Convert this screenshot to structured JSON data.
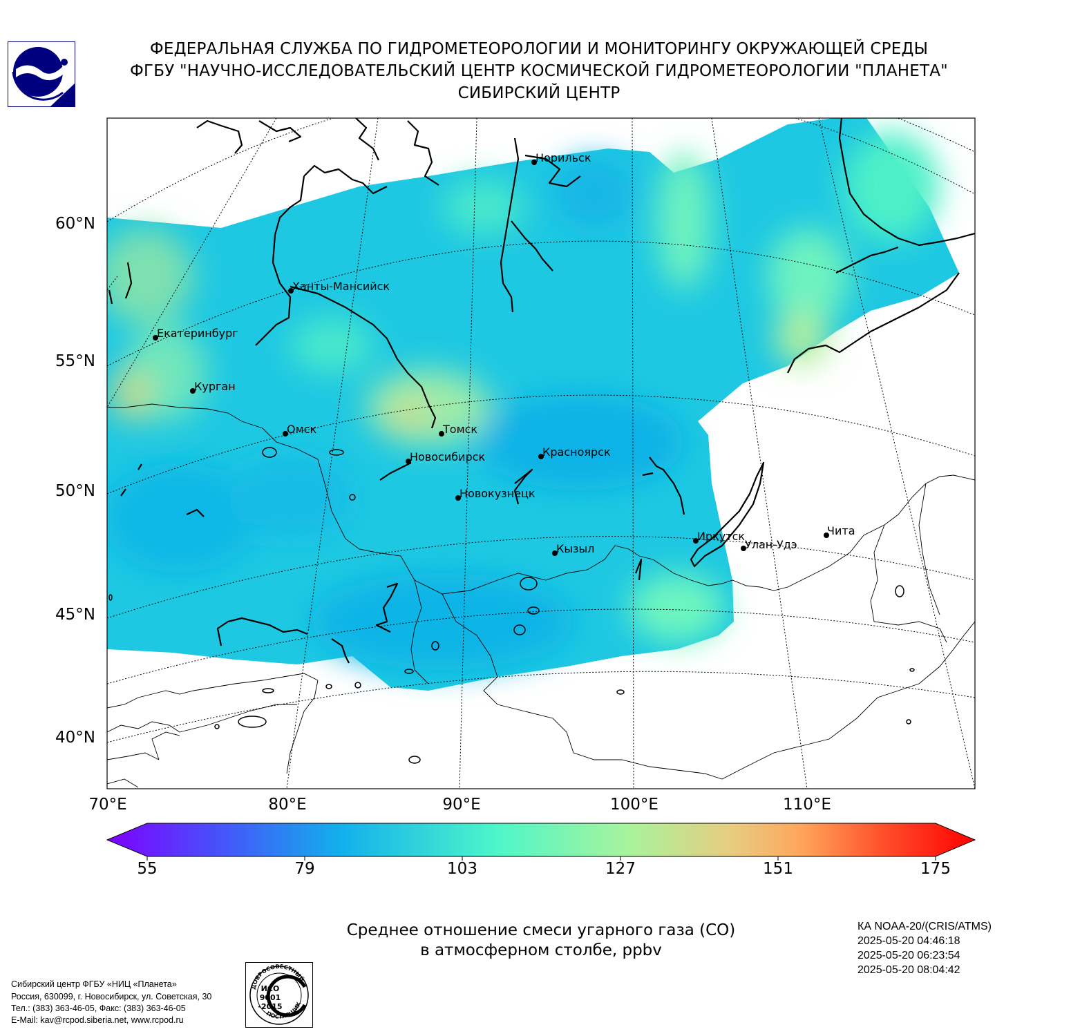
{
  "header": {
    "line1": "ФЕДЕРАЛЬНАЯ СЛУЖБА ПО ГИДРОМЕТЕОРОЛОГИИ И МОНИТОРИНГУ ОКРУЖАЮЩЕЙ СРЕДЫ",
    "line2": "ФГБУ \"НАУЧНО-ИССЛЕДОВАТЕЛЬСКИЙ ЦЕНТР КОСМИЧЕСКОЙ ГИДРОМЕТЕОРОЛОГИИ \"ПЛАНЕТА\"",
    "line3": "СИБИРСКИЙ ЦЕНТР"
  },
  "map": {
    "lat_labels": [
      "60°N",
      "55°N",
      "50°N",
      "45°N",
      "40°N"
    ],
    "lon_labels": [
      "70°E",
      "80°E",
      "90°E",
      "100°E",
      "110°E"
    ],
    "cities": [
      {
        "name": "Норильск"
      },
      {
        "name": "Ханты-Мансийск"
      },
      {
        "name": "Екатеринбург"
      },
      {
        "name": "Курган"
      },
      {
        "name": "Омск"
      },
      {
        "name": "Томск"
      },
      {
        "name": "Новосибирск"
      },
      {
        "name": "Красноярск"
      },
      {
        "name": "Новокузнецк"
      },
      {
        "name": "Иркутск"
      },
      {
        "name": "Улан-Удэ"
      },
      {
        "name": "Чита"
      },
      {
        "name": "Кызыл"
      }
    ]
  },
  "colorbar": {
    "ticks": [
      "55",
      "79",
      "103",
      "127",
      "151",
      "175"
    ],
    "colors": {
      "low": "#7f00ff",
      "mid_low": "#00b4eb",
      "mid": "#4ef6c9",
      "mid_high": "#f0c070",
      "high": "#ff0000"
    }
  },
  "caption": {
    "line1": "Среднее отношение смеси угарного газа (CO)",
    "line2": "в атмосферном столбе, ppbv"
  },
  "satellite": {
    "name": "КА NOAA-20/(CRIS/ATMS)",
    "times": [
      "2025-05-20 04:46:18",
      "2025-05-20 06:23:54",
      "2025-05-20 08:04:42"
    ]
  },
  "footer": {
    "line1": "Сибирский центр ФГБУ «НИЦ «Планета»",
    "line2": "Россия, 630099, г. Новосибирск, ул. Советская, 30",
    "line3": "Тел.: (383) 363-46-05, Факс: (383) 363-46-05",
    "line4": "E-Mail: kav@rcpod.siberia.net, www.rcpod.ru"
  },
  "iso_badge": {
    "top_text": "ДОБРОСОВЕСТНЫЙ",
    "line1": "ИСО",
    "line2": "9001",
    "line3": "-2015",
    "bottom_text": "ПОСТАВЩИК"
  }
}
